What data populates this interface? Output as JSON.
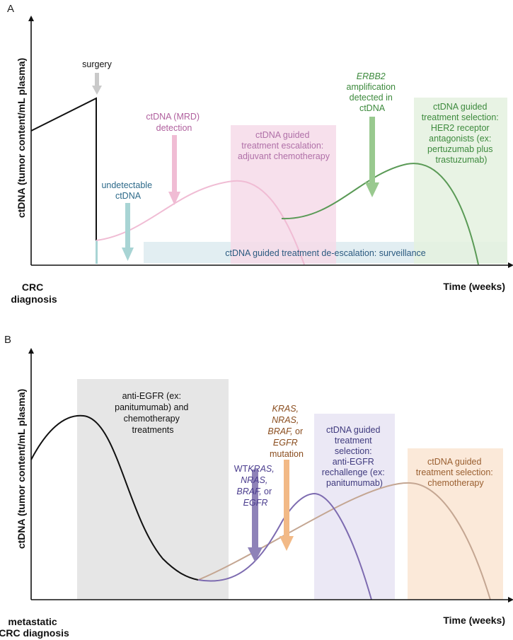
{
  "panel_a": {
    "letter": "A",
    "y_axis_label": "ctDNA (tumor content/mL plasma)",
    "x_axis_label": "Time (weeks)",
    "origin_label": [
      "CRC",
      "diagnosis"
    ],
    "surgery_label": "surgery",
    "mrd_label": [
      "ctDNA (MRD)",
      "detection"
    ],
    "undetectable_label": [
      "undetectable",
      "ctDNA"
    ],
    "escalation_label": [
      "ctDNA guided",
      "treatment escalation:",
      "adjuvant chemotherapy"
    ],
    "erbb2_label": {
      "gene": "ERBB2",
      "rest": [
        "amplification",
        "detected in",
        "ctDNA"
      ]
    },
    "her2_label": [
      "ctDNA guided",
      "treatment selection:",
      "HER2 receptor",
      "antagonists (ex:",
      "pertuzumab plus",
      "trastuzumab)"
    ],
    "surveillance_label": "ctDNA guided treatment de-escalation: surveillance"
  },
  "panel_b": {
    "letter": "B",
    "y_axis_label": "ctDNA (tumor content/mL plasma)",
    "x_axis_label": "Time (weeks)",
    "origin_label": [
      "metastatic",
      "CRC diagnosis"
    ],
    "anti_egfr_label": [
      "anti-EGFR  (ex:",
      "panitumumab) and",
      "chemotherapy",
      "treatments"
    ],
    "wt_label": {
      "prefix": "WT",
      "genes": [
        "KRAS,",
        "NRAS,",
        "BRAF,"
      ],
      "or": " or",
      "last": "EGFR"
    },
    "mutation_label": {
      "genes": [
        "KRAS,",
        "NRAS,",
        "BRAF,"
      ],
      "or": " or",
      "last": "EGFR",
      "suffix": "mutation"
    },
    "rechallenge_label": [
      "ctDNA guided",
      "treatment",
      "selection:",
      "anti-EGFR",
      "rechallenge (ex:",
      "panitumumab)"
    ],
    "chemo_label": [
      "ctDNA guided",
      "treatment selection:",
      "chemotherapy"
    ]
  },
  "colors": {
    "surgery_arrow": "#c9c9c9",
    "mrd": "#b0609e",
    "mrd_curve": "#f0bcd4",
    "undetectable": "#2d6a8a",
    "undetectable_arrow": "#a8d4d4",
    "escalation_box": "#f6dbe9",
    "escalation_text": "#b070a8",
    "her2_green": "#3d8a3d",
    "her2_curve": "#5a9a56",
    "her2_box": "#e4f1df",
    "erbb2_arrow": "#99c98f",
    "surveillance_box": "#e2eef2",
    "surveillance_text": "#2b5a80",
    "anti_egfr_box": "#e6e6e6",
    "wt_text": "#4b3d8e",
    "wt_arrow": "#8e82b8",
    "purple_curve": "#7d6bb0",
    "mutation_text": "#8a4d1e",
    "mutation_arrow": "#f2b986",
    "rechallenge_box": "#ebe8f5",
    "rechallenge_text": "#3f3a7e",
    "chemo_box": "#fbe9d9",
    "chemo_text": "#9a5f30",
    "tan_curve": "#c4a692"
  }
}
